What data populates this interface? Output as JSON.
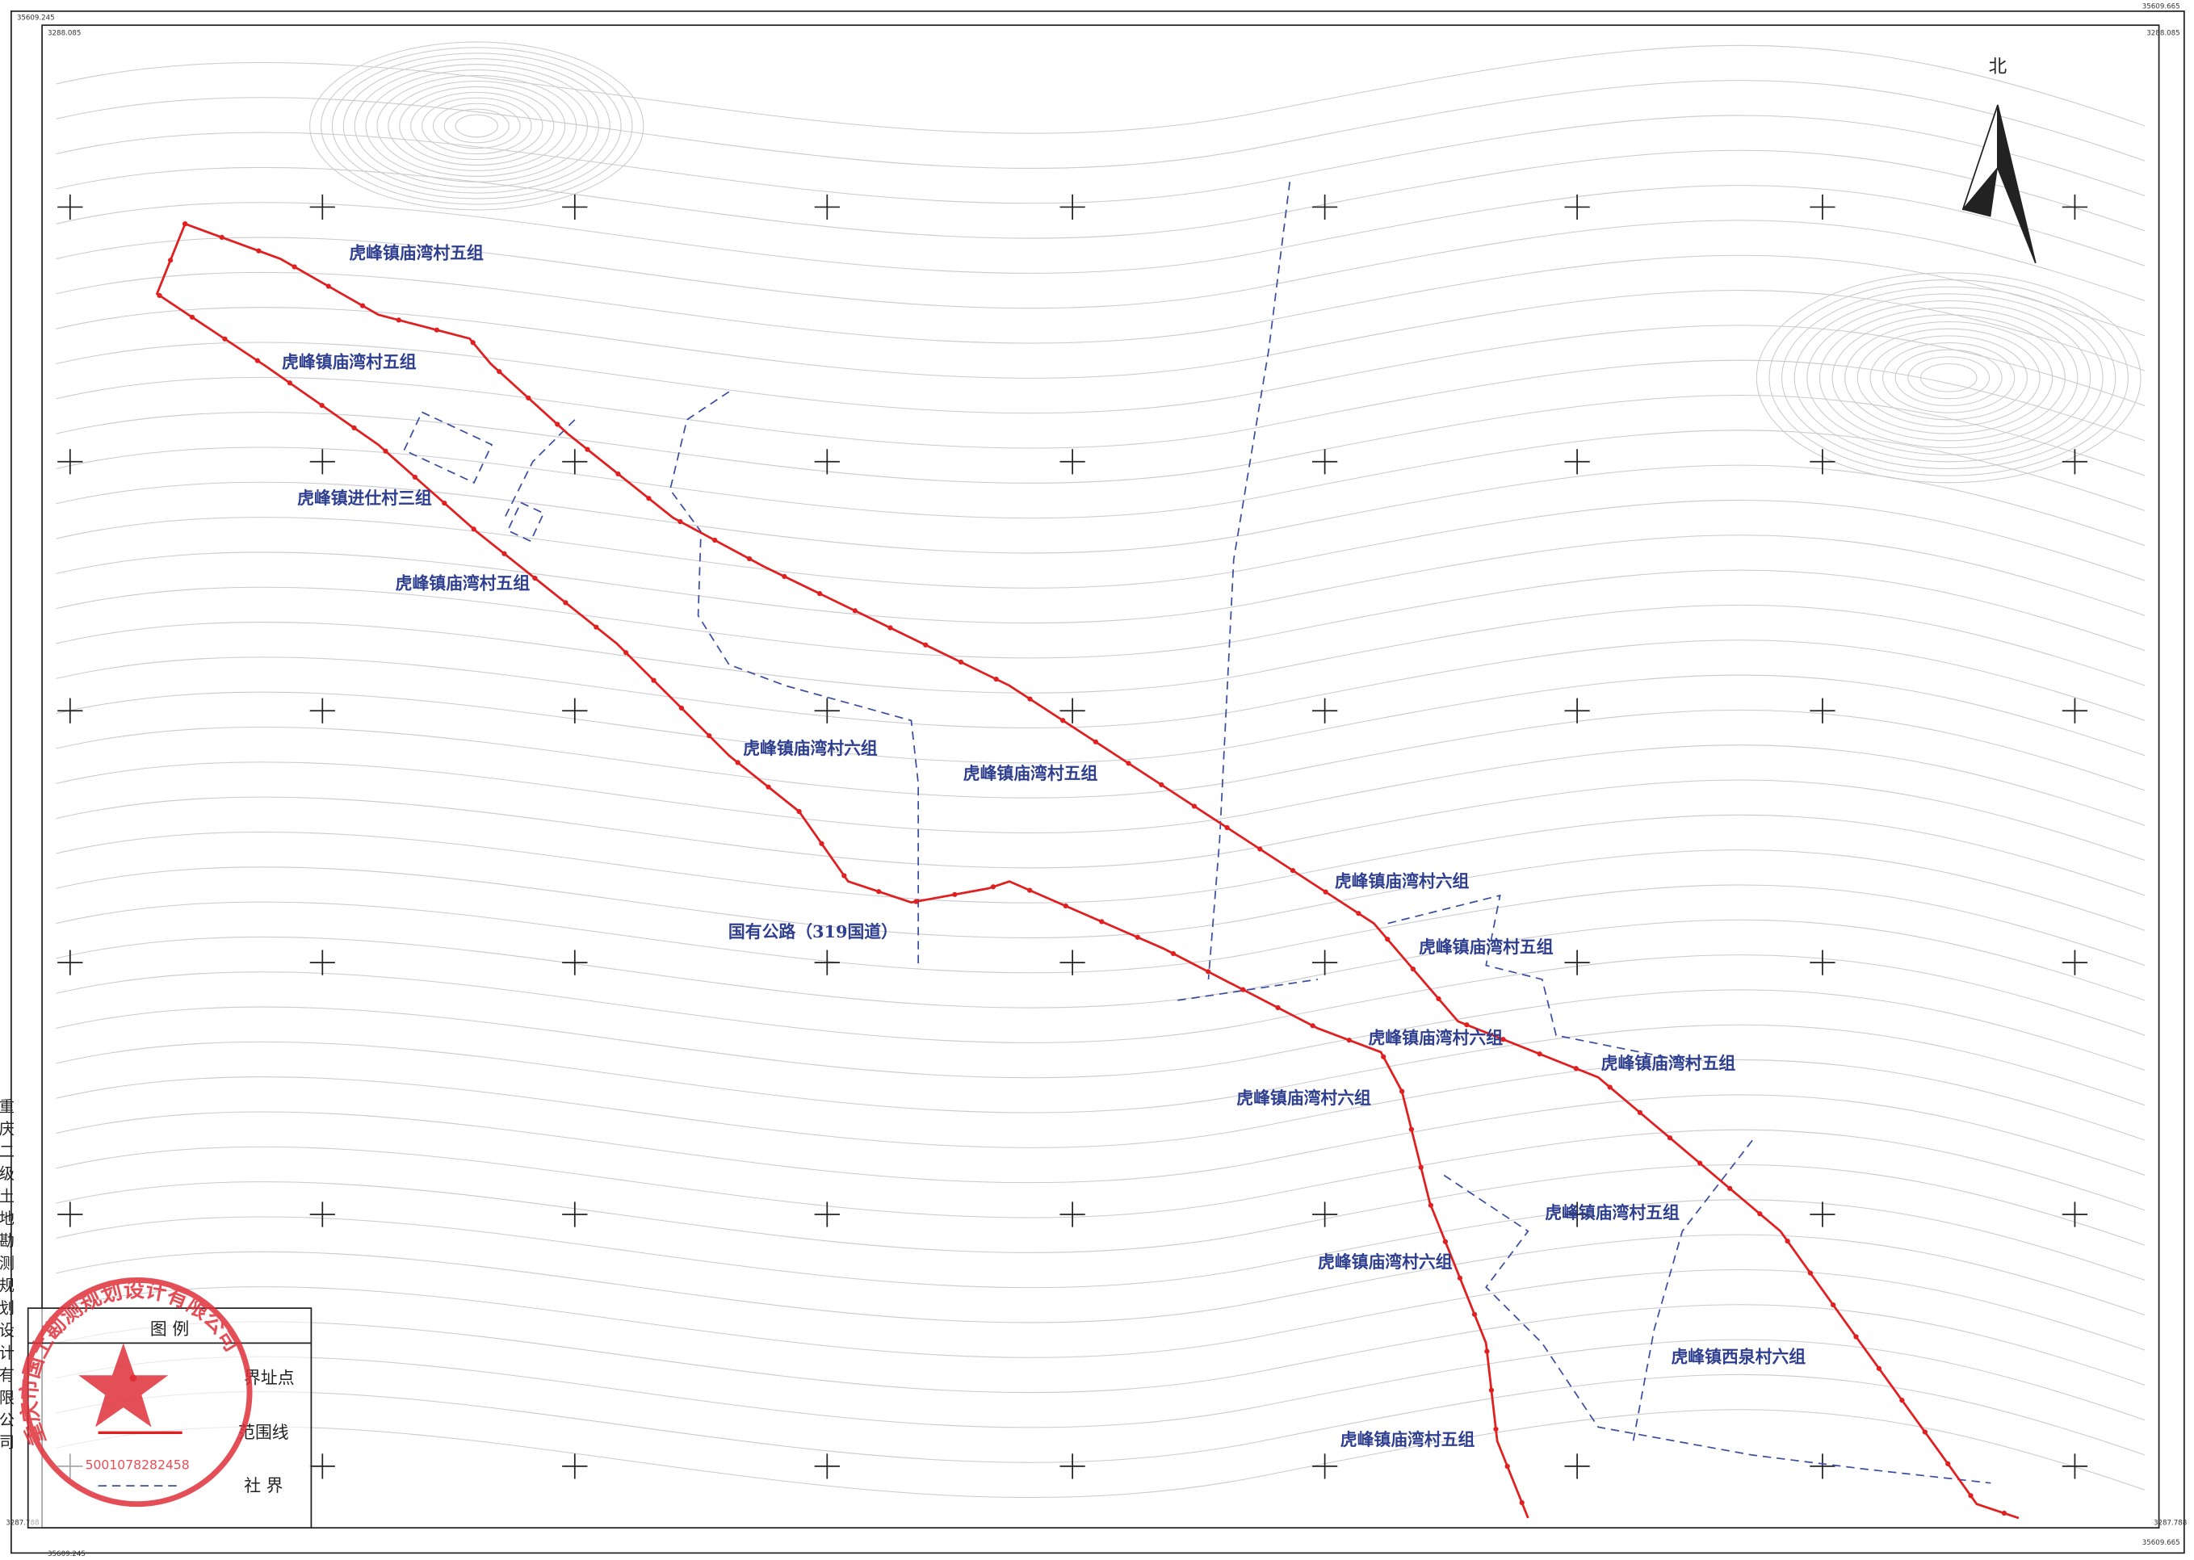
{
  "corners": {
    "top_left_x": "35609.245",
    "top_left_y": "3288.085",
    "top_right_x": "35609.665",
    "top_right_y": "3288.085",
    "bottom_left_y": "3287.788",
    "bottom_left_x": "35609.245",
    "bottom_right_y": "3287.788",
    "bottom_right_x": "35609.665"
  },
  "north": "北",
  "regions": [
    "虎峰镇庙湾村五组",
    "虎峰镇庙湾村五组",
    "虎峰镇进仕村三组",
    "虎峰镇庙湾村五组",
    "虎峰镇庙湾村六组",
    "虎峰镇庙湾村五组",
    "国有公路（319国道）",
    "虎峰镇庙湾村六组",
    "虎峰镇庙湾村五组",
    "虎峰镇庙湾村六组",
    "虎峰镇庙湾村五组",
    "虎峰镇庙湾村六组",
    "虎峰镇庙湾村五组",
    "虎峰镇庙湾村六组",
    "虎峰镇西泉村六组",
    "虎峰镇庙湾村五组"
  ],
  "legend": {
    "title": "图 例",
    "items": [
      "界址点",
      "范围线",
      "社 界"
    ]
  },
  "company": "重庆二级土地勘测规划设计有限公司",
  "stamp": {
    "name": "重庆市国土勘测规划设计有限公司",
    "number": "5001078282458"
  }
}
